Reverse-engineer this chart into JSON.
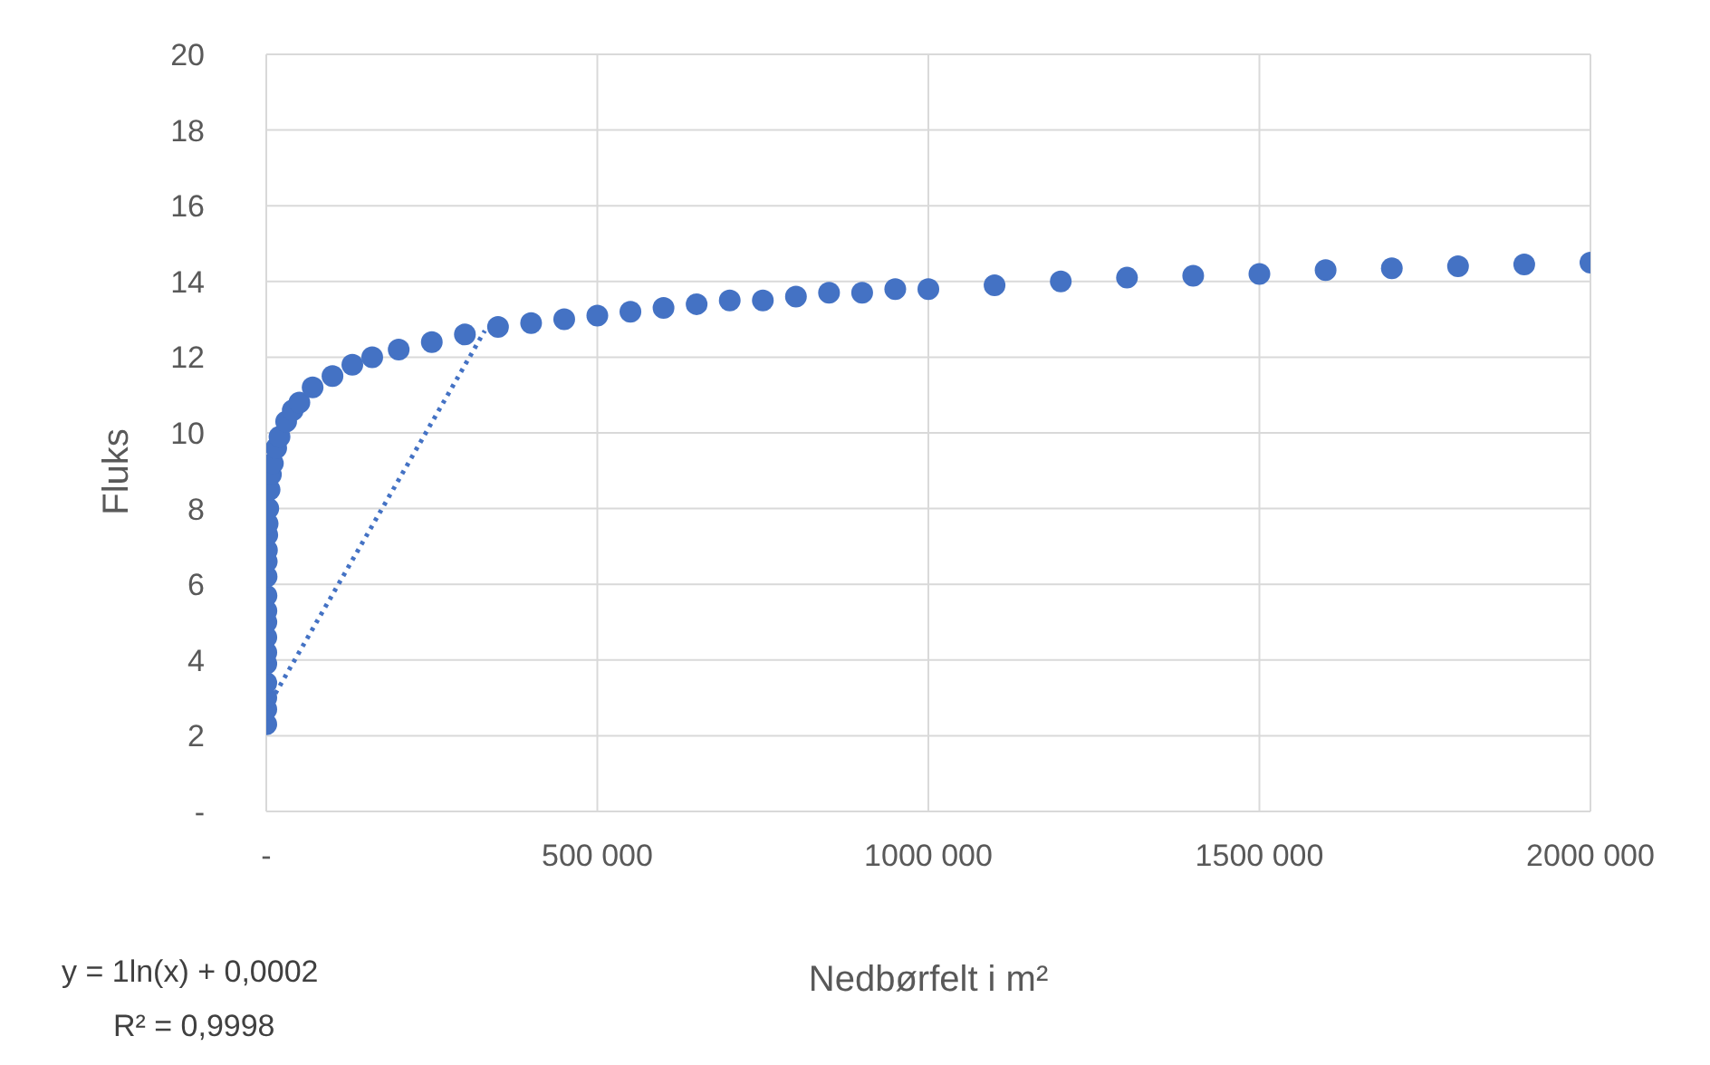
{
  "chart_data": {
    "type": "scatter",
    "xlabel": "Nedbørfelt i m²",
    "ylabel": "Fluks",
    "xlim": [
      0,
      2000000
    ],
    "xticks": [
      {
        "value": 0,
        "label": "-"
      },
      {
        "value": 500000,
        "label": "500 000"
      },
      {
        "value": 1000000,
        "label": "1000 000"
      },
      {
        "value": 1500000,
        "label": "1500 000"
      },
      {
        "value": 2000000,
        "label": "2000 000"
      }
    ],
    "ylim": [
      0,
      20
    ],
    "yticks": [
      {
        "value": 0,
        "label": "-"
      },
      2,
      4,
      6,
      8,
      10,
      12,
      14,
      16,
      18,
      20
    ],
    "grid": true,
    "legend": false,
    "series": [
      {
        "type": "scatter",
        "color": "#4472c4",
        "marker": "circle",
        "x": [
          10,
          15,
          20,
          30,
          50,
          70,
          100,
          150,
          200,
          300,
          500,
          700,
          1000,
          1500,
          2000,
          3000,
          5000,
          7000,
          10000,
          15000,
          20000,
          30000,
          40000,
          50000,
          70000,
          100000,
          130000,
          160000,
          200000,
          250000,
          300000,
          350000,
          400000,
          450000,
          500000,
          550000,
          600000,
          650000,
          700000,
          750000,
          800000,
          850000,
          900000,
          950000,
          1000000,
          1100000,
          1200000,
          1300000,
          1400000,
          1500000,
          1600000,
          1700000,
          1800000,
          1900000,
          2000000
        ],
        "values": [
          2.3,
          2.7,
          3.0,
          3.4,
          3.9,
          4.2,
          4.6,
          5.0,
          5.3,
          5.7,
          6.2,
          6.6,
          6.9,
          7.3,
          7.6,
          8.0,
          8.5,
          8.9,
          9.2,
          9.6,
          9.9,
          10.3,
          10.6,
          10.8,
          11.2,
          11.5,
          11.8,
          12.0,
          12.2,
          12.4,
          12.6,
          12.8,
          12.9,
          13.0,
          13.1,
          13.2,
          13.3,
          13.4,
          13.5,
          13.5,
          13.6,
          13.7,
          13.7,
          13.8,
          13.8,
          13.9,
          14.0,
          14.1,
          14.15,
          14.2,
          14.3,
          14.35,
          14.4,
          14.45,
          14.5
        ]
      },
      {
        "type": "line",
        "color": "#4472c4",
        "line_style": "dotted",
        "x": [
          10,
          330000
        ],
        "values": [
          2.7,
          12.7
        ]
      }
    ],
    "annotations": [
      "y = 1ln(x) + 0,0002",
      "R² = 0,9998"
    ]
  }
}
